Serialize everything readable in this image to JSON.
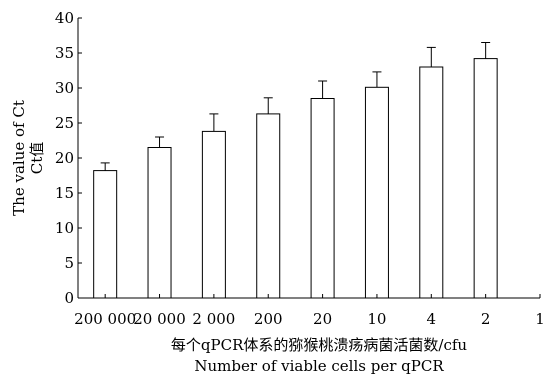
{
  "chart_data": {
    "type": "bar",
    "categories": [
      "200 000",
      "20 000",
      "2 000",
      "200",
      "20",
      "10",
      "4",
      "2",
      "1"
    ],
    "values": [
      18.2,
      21.5,
      23.8,
      26.3,
      28.5,
      30.1,
      33.0,
      34.2,
      null
    ],
    "error_upper": [
      19.3,
      23.0,
      26.3,
      28.6,
      31.0,
      32.3,
      35.8,
      36.5,
      null
    ],
    "xlabel": "每个qPCR体系的猕猴桃溃疡病菌活菌数/cfu",
    "xlabel_en": "Number of viable cells per qPCR",
    "ylabel": "Ct值",
    "ylabel_en": "The value of Ct",
    "ylim": [
      0,
      40
    ],
    "yticks": [
      0,
      5,
      10,
      15,
      20,
      25,
      30,
      35,
      40
    ],
    "grid": false,
    "bar_fill": "#ffffff",
    "bar_stroke": "#000000"
  }
}
